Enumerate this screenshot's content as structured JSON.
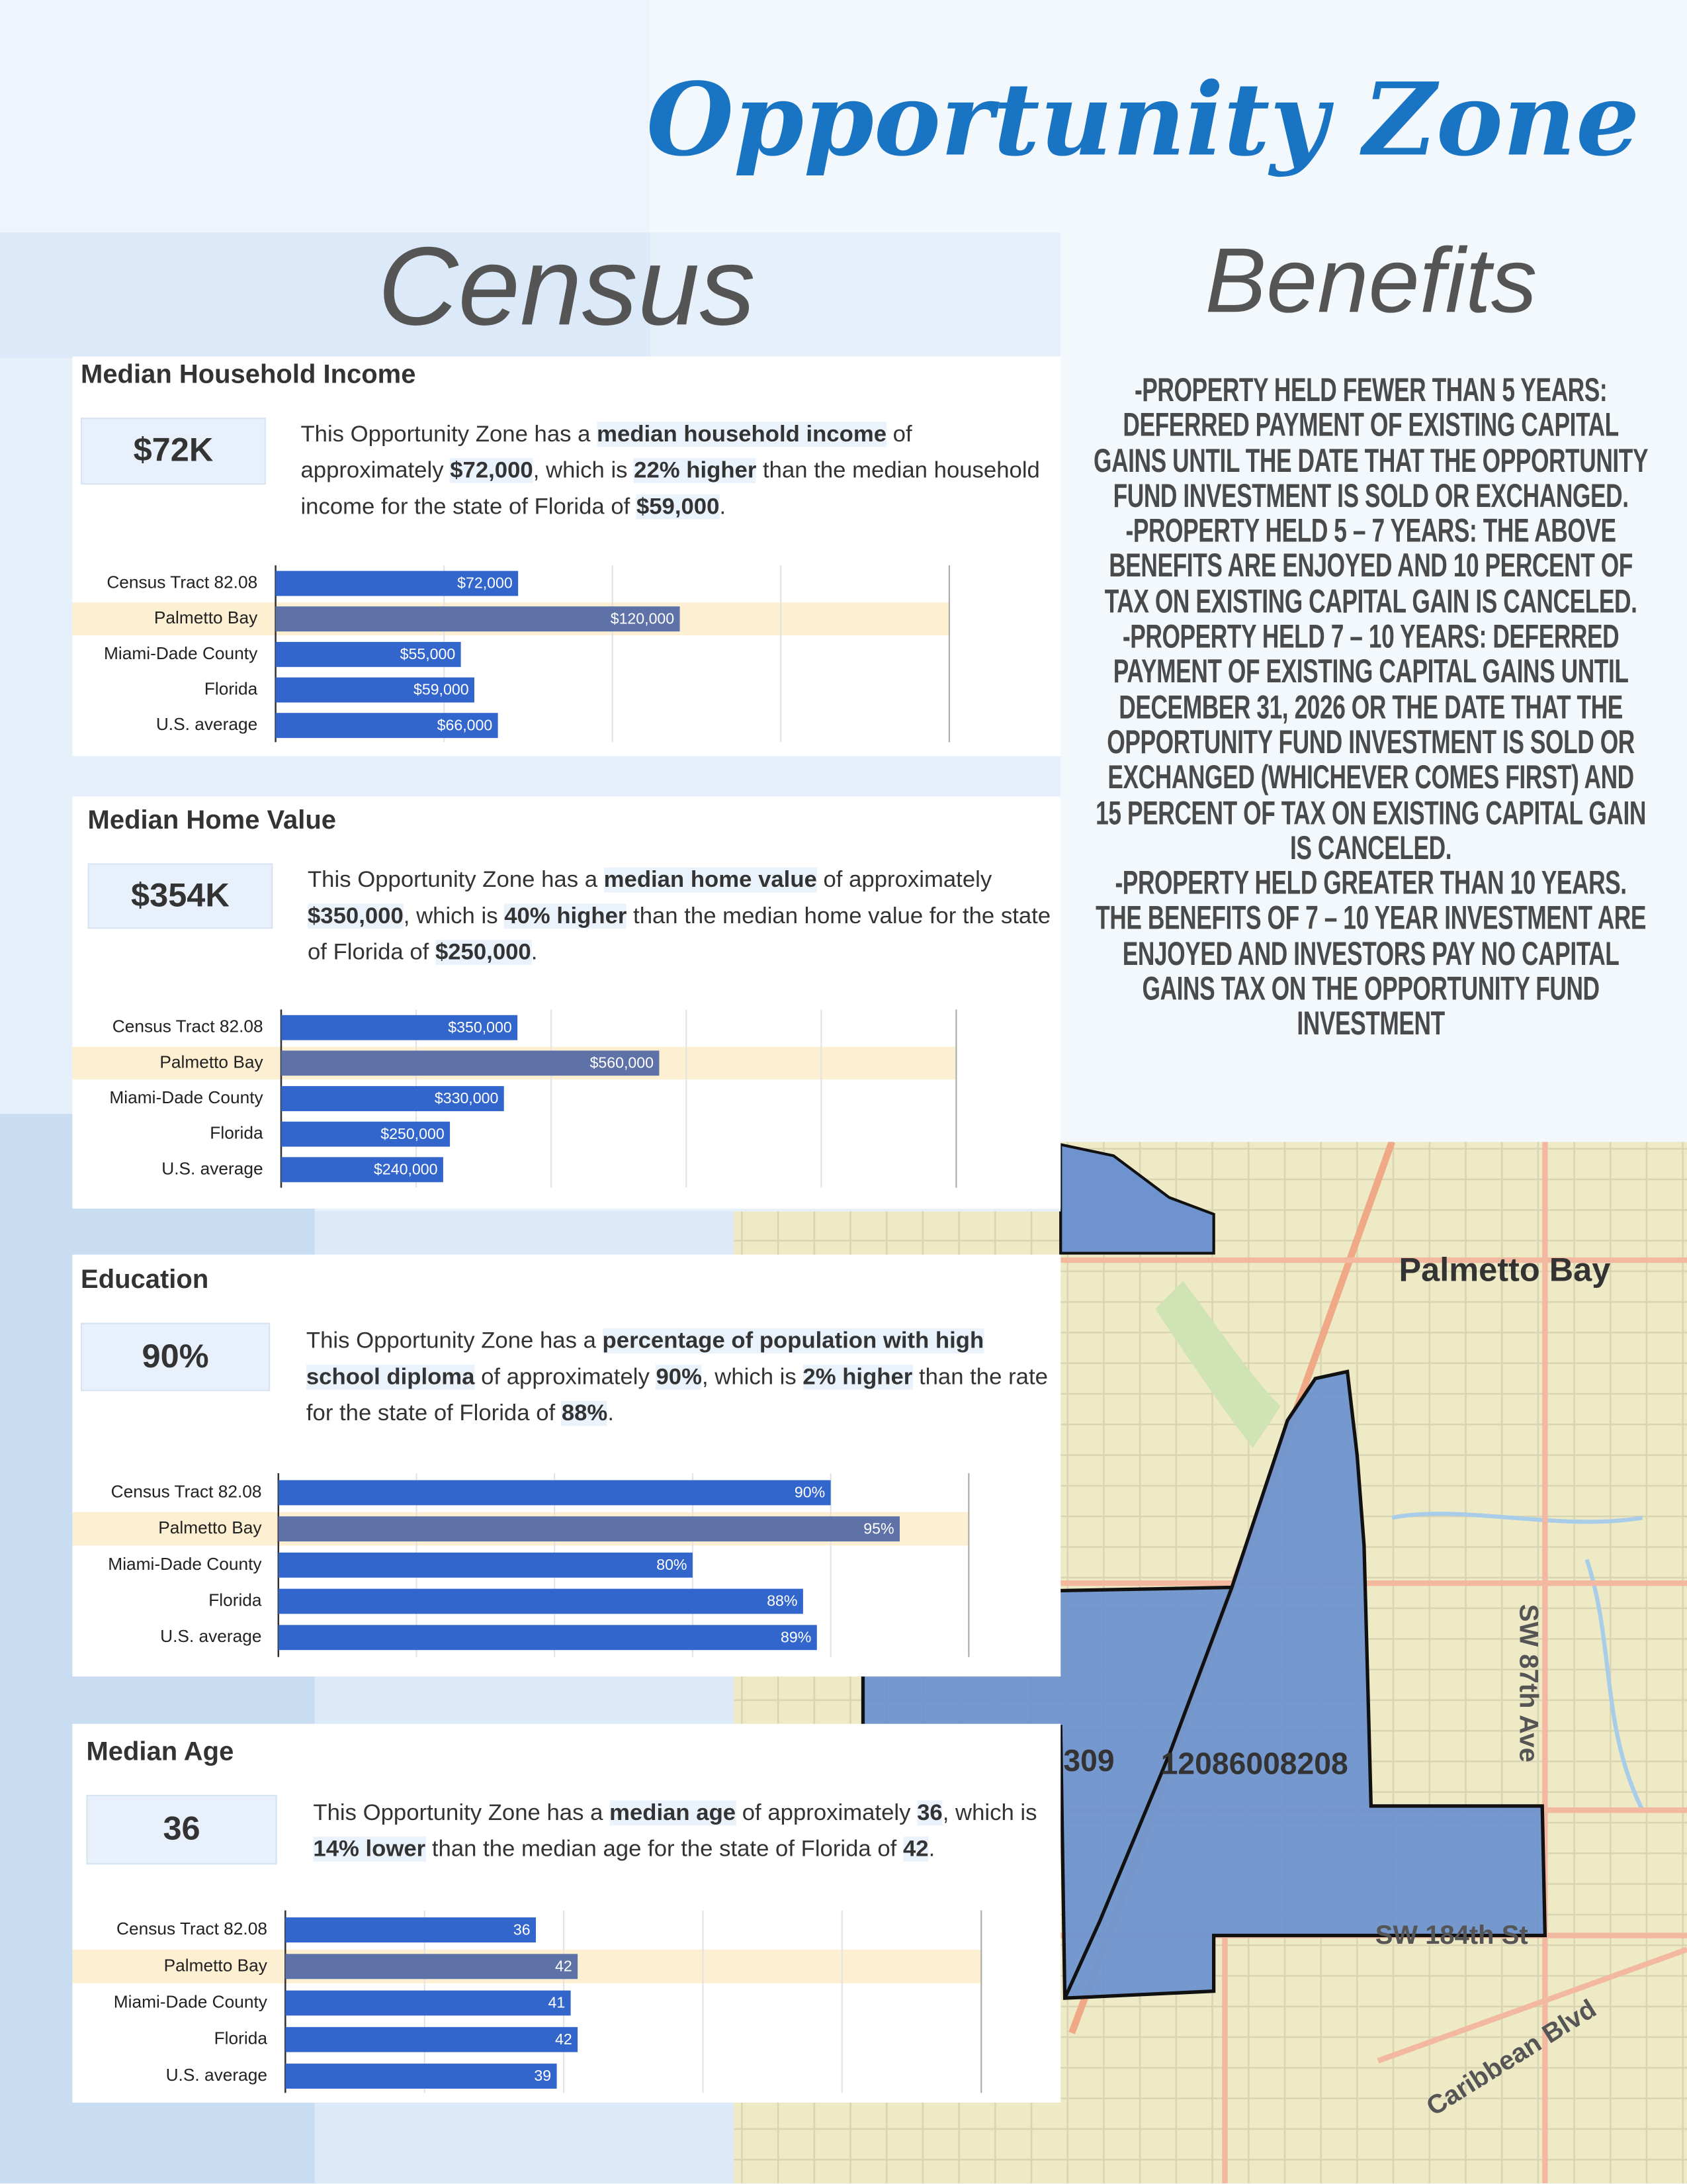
{
  "header": {
    "title": "Opportunity Zone"
  },
  "census": {
    "title": "Census"
  },
  "benefits": {
    "title": "Benefits",
    "items": [
      "-PROPERTY HELD FEWER THAN 5 YEARS: DEFERRED PAYMENT OF EXISTING CAPITAL GAINS UNTIL THE DATE THAT THE OPPORTUNITY FUND INVESTMENT IS SOLD OR EXCHANGED.",
      "-PROPERTY HELD 5 – 7 YEARS: THE ABOVE BENEFITS ARE ENJOYED AND 10 PERCENT OF TAX ON EXISTING CAPITAL GAIN IS CANCELED.",
      "-PROPERTY HELD 7 – 10 YEARS: DEFERRED PAYMENT OF EXISTING CAPITAL GAINS UNTIL DECEMBER 31, 2026 OR THE DATE THAT THE OPPORTUNITY FUND INVESTMENT IS SOLD OR EXCHANGED (WHICHEVER COMES FIRST) AND 15 PERCENT OF TAX ON EXISTING CAPITAL GAIN IS CANCELED.",
      "-PROPERTY HELD GREATER THAN 10 YEARS. THE BENEFITS OF 7 – 10 YEAR INVESTMENT ARE ENJOYED AND INVESTORS PAY NO CAPITAL GAINS TAX ON THE OPPORTUNITY FUND INVESTMENT"
    ]
  },
  "map": {
    "labels": [
      "Palmetto Bay",
      "309",
      "12086008208",
      "SW 87th Ave",
      "SW 184th St",
      "Caribbean Blvd"
    ]
  },
  "chart_data": [
    {
      "type": "bar",
      "orientation": "horizontal",
      "title": "Median Household Income",
      "headline": "$72K",
      "description": [
        "This Opportunity Zone has a ",
        "median household income",
        " of approximately ",
        "$72,000",
        ", which is ",
        "22% higher",
        " than the median household income for the state of Florida of ",
        "$59,000",
        "."
      ],
      "categories": [
        "Census Tract 82.08",
        "Palmetto Bay",
        "Miami-Dade County",
        "Florida",
        "U.S. average"
      ],
      "values": [
        72000,
        120000,
        55000,
        59000,
        66000
      ],
      "value_labels": [
        "$72,000",
        "$120,000",
        "$55,000",
        "$59,000",
        "$66,000"
      ],
      "colors": [
        "#3366cc",
        "#5f72a8",
        "#3366cc",
        "#3366cc",
        "#3366cc"
      ],
      "band_colors": [
        null,
        "#fdefd2",
        null,
        null,
        null
      ],
      "xlim": [
        0,
        200000
      ],
      "xticks": [
        0,
        50000,
        100000,
        150000,
        200000
      ],
      "grid": true
    },
    {
      "type": "bar",
      "orientation": "horizontal",
      "title": "Median Home Value",
      "headline": "$354K",
      "description": [
        "This Opportunity Zone has a ",
        "median home value",
        " of approximately ",
        "$350,000",
        ", which is ",
        "40% higher",
        " than the median home value for the state of Florida of ",
        "$250,000",
        "."
      ],
      "categories": [
        "Census Tract 82.08",
        "Palmetto Bay",
        "Miami-Dade County",
        "Florida",
        "U.S. average"
      ],
      "values": [
        350000,
        560000,
        330000,
        250000,
        240000
      ],
      "value_labels": [
        "$350,000",
        "$560,000",
        "$330,000",
        "$250,000",
        "$240,000"
      ],
      "colors": [
        "#3366cc",
        "#5f72a8",
        "#3366cc",
        "#3366cc",
        "#3366cc"
      ],
      "band_colors": [
        null,
        "#fdefd2",
        null,
        null,
        null
      ],
      "xlim": [
        0,
        1000000
      ],
      "xticks": [
        0,
        200000,
        400000,
        600000,
        800000,
        1000000
      ],
      "grid": true
    },
    {
      "type": "bar",
      "orientation": "horizontal",
      "title": "Education",
      "headline": "90%",
      "description": [
        "This Opportunity Zone has a ",
        "percentage of population with high school diploma",
        " of approximately ",
        "90%",
        ", which is ",
        "2% higher",
        " than the rate for the state of Florida of ",
        "88%",
        "."
      ],
      "categories": [
        "Census Tract 82.08",
        "Palmetto Bay",
        "Miami-Dade County",
        "Florida",
        "U.S. average"
      ],
      "values": [
        90,
        95,
        80,
        88,
        89
      ],
      "value_labels": [
        "90%",
        "95%",
        "80%",
        "88%",
        "89%"
      ],
      "colors": [
        "#3366cc",
        "#5f72a8",
        "#3366cc",
        "#3366cc",
        "#3366cc"
      ],
      "band_colors": [
        null,
        "#fdefd2",
        null,
        null,
        null
      ],
      "xlim": [
        50,
        100
      ],
      "xticks": [
        50,
        60,
        70,
        80,
        90,
        100
      ],
      "grid": true
    },
    {
      "type": "bar",
      "orientation": "horizontal",
      "title": "Median Age",
      "headline": "36",
      "description": [
        "This Opportunity Zone has a ",
        "median age",
        " of approximately ",
        "36",
        ", which is ",
        "14% lower",
        " than the median age for the state of Florida of ",
        "42",
        "."
      ],
      "categories": [
        "Census Tract 82.08",
        "Palmetto Bay",
        "Miami-Dade County",
        "Florida",
        "U.S. average"
      ],
      "values": [
        36,
        42,
        41,
        42,
        39
      ],
      "colors": [
        "#3366cc",
        "#5f72a8",
        "#3366cc",
        "#3366cc",
        "#3366cc"
      ],
      "band_colors": [
        null,
        "#fdefd2",
        null,
        null,
        null
      ],
      "xlim": [
        0,
        100
      ],
      "xticks": [
        0,
        20,
        40,
        60,
        80,
        100
      ],
      "grid": true
    }
  ]
}
